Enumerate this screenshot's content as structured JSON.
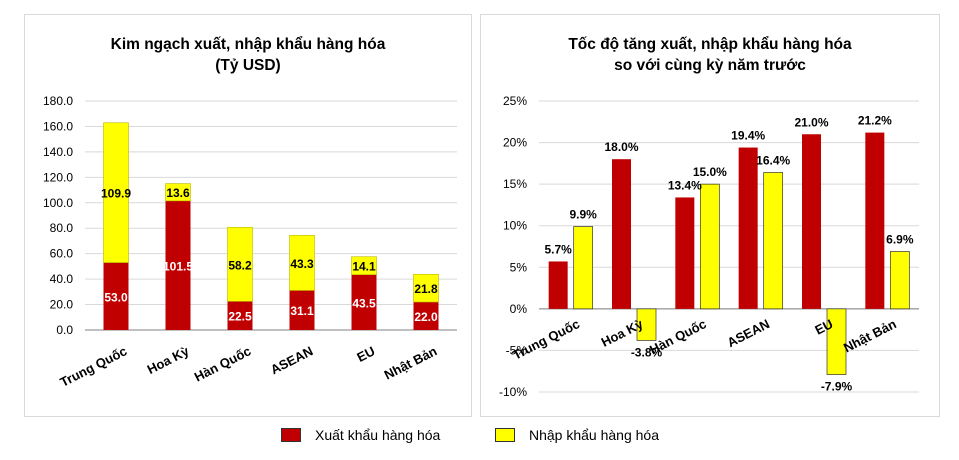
{
  "colors": {
    "export": "#c00000",
    "import": "#ffff00",
    "grid": "#d9d9d9",
    "axis": "#808080"
  },
  "legend": {
    "export_label": "Xuất khẩu hàng hóa",
    "import_label": "Nhập khẩu hàng hóa"
  },
  "chart_data": [
    {
      "type": "bar",
      "stacked": true,
      "title": "Kim ngạch xuất, nhập khẩu hàng hóa",
      "subtitle": "(Tỷ USD)",
      "categories": [
        "Trung Quốc",
        "Hoa Kỳ",
        "Hàn Quốc",
        "ASEAN",
        "EU",
        "Nhật Bản"
      ],
      "series": [
        {
          "name": "Xuất khẩu hàng hóa",
          "values": [
            53.0,
            101.5,
            22.5,
            31.1,
            43.5,
            22.0
          ],
          "labels": [
            "53.0",
            "101.5",
            "22.5",
            "31.1",
            "43.5",
            "22.0"
          ]
        },
        {
          "name": "Nhập khẩu hàng hóa",
          "values": [
            109.9,
            13.6,
            58.2,
            43.3,
            14.1,
            21.8
          ],
          "labels": [
            "109.9",
            "13.6",
            "58.2",
            "43.3",
            "14.1",
            "21.8"
          ]
        }
      ],
      "ylim": [
        0,
        180
      ],
      "yticks": [
        "0.0",
        "20.0",
        "40.0",
        "60.0",
        "80.0",
        "100.0",
        "120.0",
        "140.0",
        "160.0",
        "180.0"
      ],
      "grid": true,
      "legend_position": "bottom"
    },
    {
      "type": "bar",
      "stacked": false,
      "title": "Tốc độ tăng xuất, nhập khẩu hàng hóa",
      "subtitle": "so với cùng kỳ năm trước",
      "categories": [
        "Trung Quốc",
        "Hoa Kỳ",
        "Hàn Quốc",
        "ASEAN",
        "EU",
        "Nhật Bản"
      ],
      "series": [
        {
          "name": "Xuất khẩu hàng hóa",
          "values": [
            5.7,
            18.0,
            13.4,
            19.4,
            21.0,
            21.2
          ],
          "labels": [
            "5.7%",
            "18.0%",
            "13.4%",
            "19.4%",
            "21.0%",
            "21.2%"
          ]
        },
        {
          "name": "Nhập khẩu hàng hóa",
          "values": [
            9.9,
            -3.8,
            15.0,
            16.4,
            -7.9,
            6.9
          ],
          "labels": [
            "9.9%",
            "-3.8%",
            "15.0%",
            "16.4%",
            "-7.9%",
            "6.9%"
          ]
        }
      ],
      "ylim": [
        -10,
        25
      ],
      "yticks": [
        "-10%",
        "-5%",
        "0%",
        "5%",
        "10%",
        "15%",
        "20%",
        "25%"
      ],
      "grid": true,
      "legend_position": "bottom"
    }
  ]
}
